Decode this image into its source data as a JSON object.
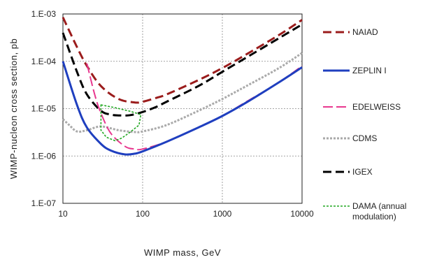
{
  "chart_data": {
    "type": "line",
    "xlabel": "WIMP mass, GeV",
    "ylabel": "WIMP-nucleon cross section, pb",
    "x_scale": "log",
    "y_scale": "log",
    "xlim": [
      10,
      10000
    ],
    "ylim": [
      1e-07,
      0.001
    ],
    "x_ticks": [
      {
        "value": 10,
        "label": "10"
      },
      {
        "value": 100,
        "label": "100"
      },
      {
        "value": 1000,
        "label": "1000"
      },
      {
        "value": 10000,
        "label": "10000"
      }
    ],
    "y_ticks": [
      {
        "value": 1e-07,
        "label": "1.E-07"
      },
      {
        "value": 1e-06,
        "label": "1.E-06"
      },
      {
        "value": 1e-05,
        "label": "1.E-05"
      },
      {
        "value": 0.0001,
        "label": "1.E-04"
      },
      {
        "value": 0.001,
        "label": "1.E-03"
      }
    ],
    "grid": true,
    "legend_position": "right",
    "series": [
      {
        "name": "NAIAD",
        "color": "#9b1c1c",
        "style": "dashed-heavy",
        "x": [
          10,
          15,
          20,
          30,
          50,
          80,
          100,
          150,
          200,
          500,
          1000,
          2000,
          5000,
          10000
        ],
        "y": [
          0.00085,
          0.0002,
          8e-05,
          3e-05,
          1.6e-05,
          1.35e-05,
          1.4e-05,
          1.7e-05,
          2e-05,
          4e-05,
          7.2e-05,
          0.00014,
          0.00035,
          0.00075
        ]
      },
      {
        "name": "ZEPLIN I",
        "color": "#1f3fbf",
        "style": "solid-heavy",
        "x": [
          10,
          15,
          20,
          30,
          40,
          60,
          80,
          100,
          200,
          500,
          1000,
          2000,
          5000,
          10000
        ],
        "y": [
          0.0001,
          1.2e-05,
          4e-06,
          1.8e-06,
          1.3e-06,
          1.08e-06,
          1.12e-06,
          1.25e-06,
          2e-06,
          4e-06,
          7e-06,
          1.35e-05,
          3.5e-05,
          7.5e-05
        ]
      },
      {
        "name": "EDELWEISS",
        "color": "#e8388f",
        "style": "dashed-long",
        "x": [
          20,
          25,
          30,
          40,
          60,
          80,
          100,
          200,
          500,
          1000,
          2000,
          5000,
          10000
        ],
        "y": [
          9e-05,
          2e-05,
          8e-06,
          3e-06,
          1.6e-06,
          1.4e-06,
          1.4e-06,
          2e-06,
          4e-06,
          7e-06,
          1.4e-05,
          3.5e-05,
          8e-05
        ]
      },
      {
        "name": "CDMS",
        "color": "#aaaaaa",
        "style": "dotted-heavy",
        "x": [
          10,
          12,
          15,
          20,
          30,
          50,
          80,
          100,
          200,
          500,
          1000,
          2000,
          5000,
          10000
        ],
        "y": [
          6e-06,
          4.5e-06,
          3.3e-06,
          3.5e-06,
          4.2e-06,
          3.5e-06,
          3.2e-06,
          3.3e-06,
          4.5e-06,
          9e-06,
          1.6e-05,
          3e-05,
          7e-05,
          0.00015
        ]
      },
      {
        "name": "IGEX",
        "color": "#000000",
        "style": "dashed-heavy",
        "x": [
          10,
          15,
          20,
          30,
          40,
          50,
          70,
          100,
          150,
          200,
          500,
          1000,
          2000,
          5000,
          10000
        ],
        "y": [
          0.0004,
          6e-05,
          2e-05,
          9e-06,
          7.5e-06,
          7.2e-06,
          7.3e-06,
          8.5e-06,
          1.1e-05,
          1.4e-05,
          3e-05,
          6e-05,
          0.00012,
          0.0003,
          0.0006
        ]
      },
      {
        "name": "DAMA (annual modulation)",
        "color": "#22a822",
        "style": "dotted-thin",
        "closed": true,
        "x": [
          30,
          45,
          70,
          95,
          90,
          70,
          55,
          45,
          35,
          30,
          30
        ],
        "y": [
          1.2e-05,
          1.05e-05,
          8.8e-06,
          7.5e-06,
          4.5e-06,
          3.2e-06,
          2.4e-06,
          2.1e-06,
          2.5e-06,
          3.5e-06,
          1.2e-05
        ]
      }
    ]
  }
}
